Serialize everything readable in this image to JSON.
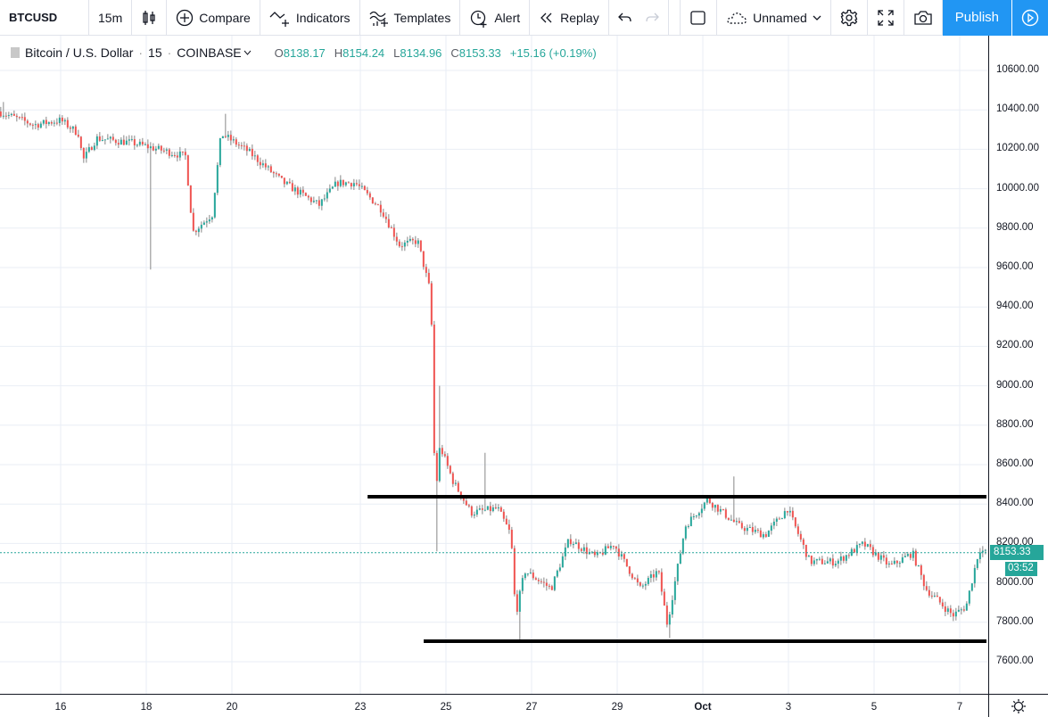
{
  "toolbar": {
    "symbol": "BTCUSD",
    "interval": "15m",
    "compare": "Compare",
    "indicators": "Indicators",
    "templates": "Templates",
    "alert": "Alert",
    "replay": "Replay",
    "layout_name": "Unnamed",
    "publish": "Publish"
  },
  "legend": {
    "title": "Bitcoin / U.S. Dollar",
    "interval": "15",
    "exchange": "COINBASE",
    "sep": "·",
    "o_label": "O",
    "o": "8138.17",
    "h_label": "H",
    "h": "8154.24",
    "l_label": "L",
    "l": "8134.96",
    "c_label": "C",
    "c": "8153.33",
    "change": "+15.16 (+0.19%)"
  },
  "colors": {
    "up": "#26a69a",
    "down": "#ef5350",
    "grid": "#e9eef5",
    "accent": "#2196f3",
    "drawn_line": "#000000"
  },
  "price_label": "8153.33",
  "countdown": "03:52",
  "chart_data": {
    "type": "candlestick",
    "symbol": "BTCUSD",
    "timeframe": "15m",
    "y_ticks": [
      "7600.00",
      "7800.00",
      "8000.00",
      "8200.00",
      "8400.00",
      "8600.00",
      "8800.00",
      "9000.00",
      "9200.00",
      "9400.00",
      "9600.00",
      "9800.00",
      "10000.00",
      "10200.00",
      "10400.00",
      "10600.00"
    ],
    "ylim": [
      7480,
      10720
    ],
    "x_ticks": [
      {
        "t": 16,
        "label": "16"
      },
      {
        "t": 18,
        "label": "18"
      },
      {
        "t": 20,
        "label": "20"
      },
      {
        "t": 23,
        "label": "23"
      },
      {
        "t": 25,
        "label": "25"
      },
      {
        "t": 27,
        "label": "27"
      },
      {
        "t": 29,
        "label": "29"
      },
      {
        "t": 31,
        "label": "Oct"
      },
      {
        "t": 33,
        "label": "3"
      },
      {
        "t": 35,
        "label": "5"
      },
      {
        "t": 37,
        "label": "7"
      }
    ],
    "xlim": [
      14.58,
      37.65
    ],
    "x_unit": "day (Sep 16 = 16, Oct 1 = 31)",
    "price_path": [
      [
        14.58,
        10392
      ],
      [
        15.42,
        10324
      ],
      [
        16.04,
        10347
      ],
      [
        16.46,
        10280
      ],
      [
        16.56,
        10143
      ],
      [
        16.88,
        10256
      ],
      [
        17.71,
        10233
      ],
      [
        18.96,
        10165
      ],
      [
        19.13,
        9780
      ],
      [
        19.58,
        9870
      ],
      [
        19.79,
        10280
      ],
      [
        20.42,
        10190
      ],
      [
        21.25,
        10030
      ],
      [
        22.08,
        9917
      ],
      [
        22.5,
        10030
      ],
      [
        22.92,
        10030
      ],
      [
        23.54,
        9894
      ],
      [
        23.96,
        9713
      ],
      [
        24.38,
        9736
      ],
      [
        24.69,
        9464
      ],
      [
        24.79,
        8423
      ],
      [
        24.9,
        8695
      ],
      [
        25.21,
        8514
      ],
      [
        25.63,
        8356
      ],
      [
        26.25,
        8378
      ],
      [
        26.56,
        8243
      ],
      [
        26.67,
        7835
      ],
      [
        26.88,
        8061
      ],
      [
        27.5,
        7971
      ],
      [
        27.92,
        8220
      ],
      [
        28.54,
        8130
      ],
      [
        28.96,
        8197
      ],
      [
        29.58,
        7971
      ],
      [
        30.0,
        8061
      ],
      [
        30.21,
        7790
      ],
      [
        30.63,
        8288
      ],
      [
        31.15,
        8423
      ],
      [
        31.88,
        8288
      ],
      [
        32.5,
        8243
      ],
      [
        33.02,
        8378
      ],
      [
        33.54,
        8107
      ],
      [
        34.17,
        8107
      ],
      [
        34.79,
        8197
      ],
      [
        35.42,
        8084
      ],
      [
        35.94,
        8152
      ],
      [
        36.25,
        7971
      ],
      [
        36.88,
        7835
      ],
      [
        37.19,
        7880
      ],
      [
        37.5,
        8175
      ],
      [
        37.63,
        8153
      ]
    ],
    "extreme_wicks": [
      [
        14.65,
        10440
      ],
      [
        18.1,
        9590
      ],
      [
        19.8,
        10380
      ],
      [
        24.75,
        8160
      ],
      [
        24.85,
        9000
      ],
      [
        25.9,
        8660
      ],
      [
        26.68,
        7710
      ],
      [
        30.2,
        7720
      ],
      [
        31.7,
        8540
      ]
    ],
    "last_price": 8153.33,
    "drawn_lines": [
      {
        "name": "resistance",
        "price": 8437,
        "t_start": 23.17
      },
      {
        "name": "support",
        "price": 7704,
        "t_start": 24.48
      }
    ]
  }
}
